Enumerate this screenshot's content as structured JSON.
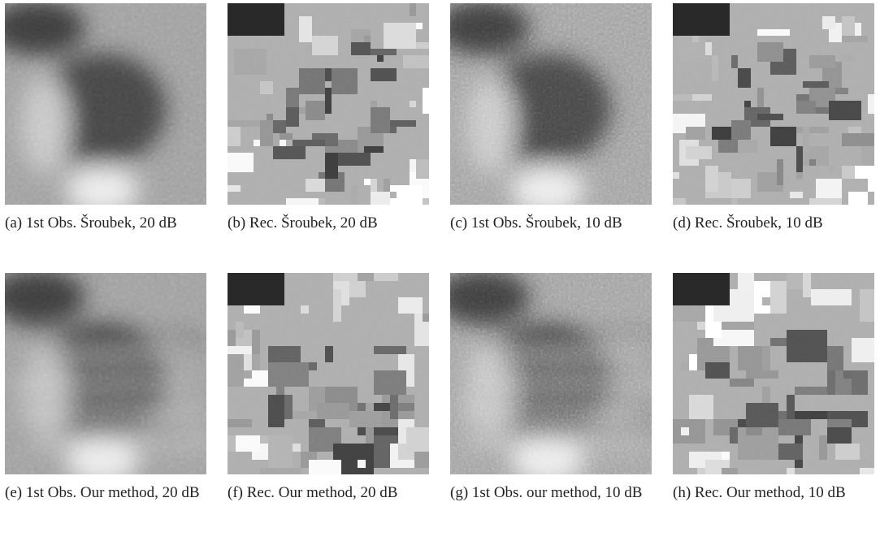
{
  "figures": [
    {
      "caption": "(a) 1st Obs. Šroubek, 20 dB"
    },
    {
      "caption": "(b) Rec. Šroubek, 20 dB"
    },
    {
      "caption": "(c) 1st Obs. Šroubek, 10 dB"
    },
    {
      "caption": "(d) Rec. Šroubek, 10 dB"
    },
    {
      "caption": "(e) 1st Obs. Our method, 20 dB"
    },
    {
      "caption": "(f) Rec. Our method, 20 dB"
    },
    {
      "caption": "(g) 1st Obs. our method, 10 dB"
    },
    {
      "caption": "(h) Rec. Our method, 10 dB"
    }
  ]
}
